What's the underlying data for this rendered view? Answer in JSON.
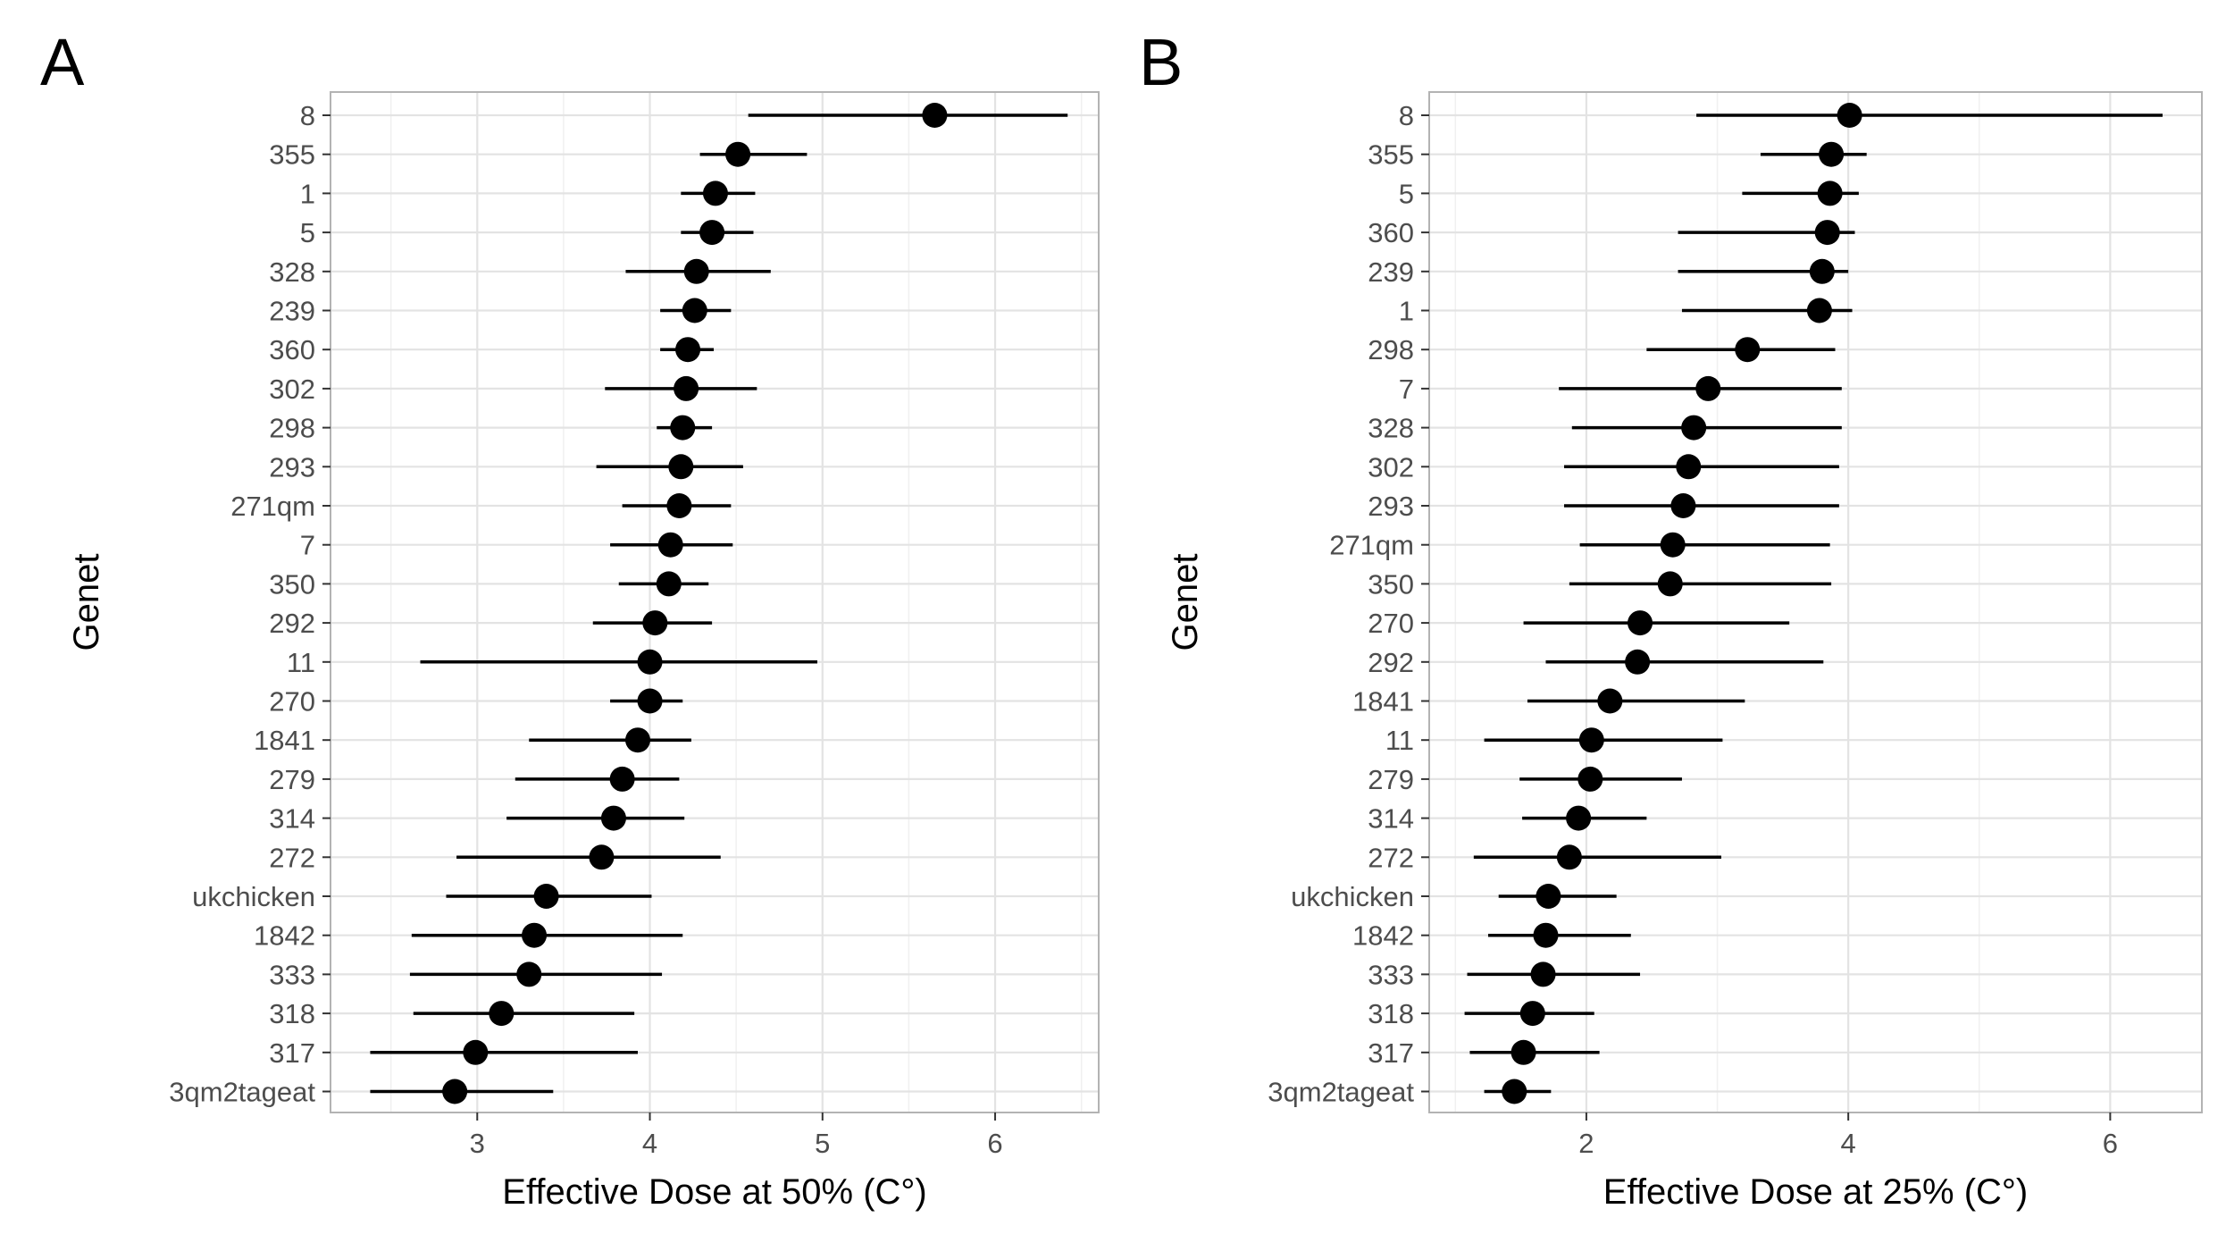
{
  "chart_data": [
    {
      "type": "scatter",
      "panel_label": "A",
      "xlabel": "Effective Dose at 50% (C°)",
      "ylabel": "Genet",
      "xlim": [
        2.15,
        6.6
      ],
      "xticks": [
        3,
        4,
        5,
        6
      ],
      "grid": true,
      "categories": [
        "8",
        "355",
        "1",
        "5",
        "328",
        "239",
        "360",
        "302",
        "298",
        "293",
        "271qm",
        "7",
        "350",
        "292",
        "11",
        "270",
        "1841",
        "279",
        "314",
        "272",
        "ukchicken",
        "1842",
        "333",
        "318",
        "317",
        "3qm2tageat"
      ],
      "series": [
        {
          "estimate": [
            5.65,
            4.51,
            4.38,
            4.36,
            4.27,
            4.26,
            4.22,
            4.21,
            4.19,
            4.18,
            4.17,
            4.12,
            4.11,
            4.03,
            4.0,
            4.0,
            3.93,
            3.84,
            3.79,
            3.72,
            3.4,
            3.33,
            3.3,
            3.14,
            2.99,
            2.87
          ],
          "lower": [
            4.57,
            4.29,
            4.18,
            4.18,
            3.86,
            4.06,
            4.06,
            3.74,
            4.04,
            3.69,
            3.84,
            3.77,
            3.82,
            3.67,
            2.67,
            3.77,
            3.3,
            3.22,
            3.17,
            2.88,
            2.82,
            2.62,
            2.61,
            2.63,
            2.38,
            2.38
          ],
          "upper": [
            6.42,
            4.91,
            4.61,
            4.6,
            4.7,
            4.47,
            4.37,
            4.62,
            4.36,
            4.54,
            4.47,
            4.48,
            4.34,
            4.36,
            4.97,
            4.19,
            4.24,
            4.17,
            4.2,
            4.41,
            4.01,
            4.19,
            4.07,
            3.91,
            3.93,
            3.44
          ]
        }
      ]
    },
    {
      "type": "scatter",
      "panel_label": "B",
      "xlabel": "Effective Dose at 25% (C°)",
      "ylabel": "Genet",
      "xlim": [
        0.8,
        6.7
      ],
      "xticks": [
        2,
        4,
        6
      ],
      "grid": true,
      "categories": [
        "8",
        "355",
        "5",
        "360",
        "239",
        "1",
        "298",
        "7",
        "328",
        "302",
        "293",
        "271qm",
        "350",
        "270",
        "292",
        "1841",
        "11",
        "279",
        "314",
        "272",
        "ukchicken",
        "1842",
        "333",
        "318",
        "317",
        "3qm2tageat"
      ],
      "series": [
        {
          "estimate": [
            4.01,
            3.87,
            3.86,
            3.84,
            3.8,
            3.78,
            3.23,
            2.93,
            2.82,
            2.78,
            2.74,
            2.66,
            2.64,
            2.41,
            2.39,
            2.18,
            2.04,
            2.03,
            1.94,
            1.87,
            1.71,
            1.69,
            1.67,
            1.59,
            1.52,
            1.45
          ],
          "lower": [
            2.84,
            3.33,
            3.19,
            2.7,
            2.7,
            2.73,
            2.46,
            1.79,
            1.89,
            1.83,
            1.83,
            1.95,
            1.87,
            1.52,
            1.69,
            1.55,
            1.22,
            1.49,
            1.51,
            1.14,
            1.33,
            1.25,
            1.09,
            1.07,
            1.11,
            1.22
          ],
          "upper": [
            6.4,
            4.14,
            4.08,
            4.05,
            4.0,
            4.03,
            3.9,
            3.95,
            3.95,
            3.93,
            3.93,
            3.86,
            3.87,
            3.55,
            3.81,
            3.21,
            3.04,
            2.73,
            2.46,
            3.03,
            2.23,
            2.34,
            2.41,
            2.06,
            2.1,
            1.73
          ]
        }
      ]
    }
  ]
}
